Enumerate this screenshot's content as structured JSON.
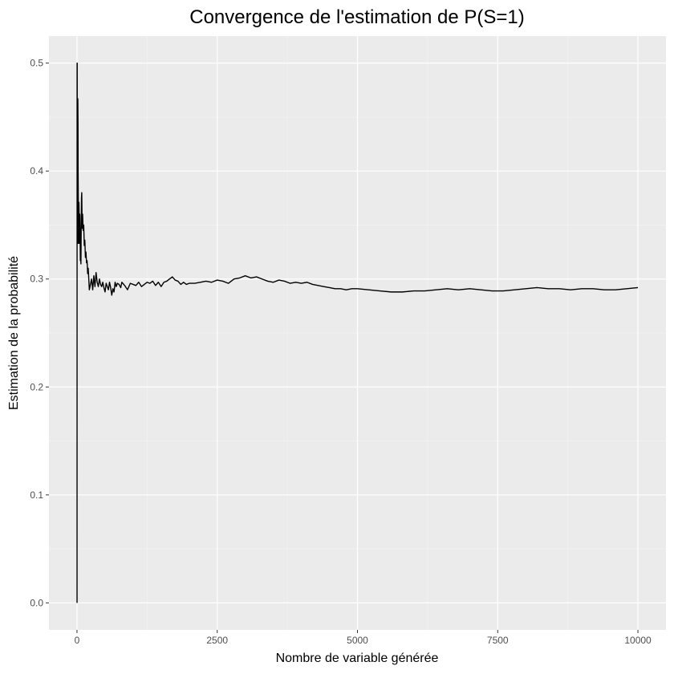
{
  "chart_data": {
    "type": "line",
    "title": "Convergence de l'estimation de P(S=1)",
    "xlabel": "Nombre de variable générée",
    "ylabel": "Estimation de la probabilité",
    "xlim": [
      -500,
      10500
    ],
    "ylim": [
      -0.025,
      0.525
    ],
    "x_ticks": [
      0,
      2500,
      5000,
      7500,
      10000
    ],
    "x_tick_labels": [
      "0",
      "2500",
      "5000",
      "7500",
      "10000"
    ],
    "y_ticks": [
      0.0,
      0.1,
      0.2,
      0.3,
      0.4,
      0.5
    ],
    "y_tick_labels": [
      "0.0",
      "0.1",
      "0.2",
      "0.3",
      "0.4",
      "0.5"
    ],
    "grid": true,
    "legend": "none",
    "colors": {
      "panel_background": "#ebebeb",
      "grid_major": "#ffffff",
      "grid_minor": "#f5f5f5",
      "line": "#000000",
      "tick_label": "#4d4d4d"
    },
    "series": [
      {
        "x": [
          1,
          2,
          3,
          4,
          6,
          8,
          10,
          12,
          15,
          18,
          20,
          25,
          30,
          35,
          40,
          45,
          50,
          55,
          60,
          65,
          70,
          75,
          80,
          85,
          90,
          95,
          100,
          110,
          120,
          130,
          140,
          150,
          160,
          170,
          180,
          190,
          200,
          210,
          220,
          240,
          260,
          280,
          300,
          320,
          340,
          360,
          380,
          400,
          420,
          440,
          460,
          480,
          500,
          520,
          540,
          560,
          580,
          600,
          620,
          640,
          660,
          680,
          700,
          720,
          750,
          780,
          800,
          850,
          900,
          950,
          1000,
          1050,
          1100,
          1150,
          1200,
          1250,
          1300,
          1350,
          1400,
          1450,
          1500,
          1550,
          1600,
          1650,
          1700,
          1750,
          1800,
          1850,
          1900,
          1950,
          2000,
          2100,
          2200,
          2300,
          2400,
          2500,
          2600,
          2700,
          2800,
          2900,
          3000,
          3100,
          3200,
          3300,
          3400,
          3500,
          3600,
          3700,
          3800,
          3900,
          4000,
          4100,
          4200,
          4300,
          4400,
          4500,
          4600,
          4700,
          4800,
          4900,
          5000,
          5200,
          5400,
          5600,
          5800,
          6000,
          6200,
          6400,
          6600,
          6800,
          7000,
          7200,
          7400,
          7600,
          7800,
          8000,
          8200,
          8400,
          8600,
          8800,
          9000,
          9200,
          9400,
          9600,
          9800,
          10000
        ],
        "y": [
          0.0,
          0.5,
          0.333,
          0.5,
          0.333,
          0.375,
          0.4,
          0.333,
          0.467,
          0.444,
          0.4,
          0.36,
          0.333,
          0.371,
          0.35,
          0.333,
          0.36,
          0.345,
          0.317,
          0.323,
          0.314,
          0.347,
          0.375,
          0.38,
          0.356,
          0.347,
          0.36,
          0.345,
          0.35,
          0.331,
          0.336,
          0.32,
          0.325,
          0.315,
          0.317,
          0.305,
          0.31,
          0.3,
          0.29,
          0.295,
          0.3,
          0.29,
          0.303,
          0.293,
          0.306,
          0.297,
          0.293,
          0.3,
          0.295,
          0.293,
          0.297,
          0.292,
          0.288,
          0.296,
          0.293,
          0.29,
          0.297,
          0.292,
          0.285,
          0.291,
          0.288,
          0.297,
          0.293,
          0.296,
          0.295,
          0.292,
          0.297,
          0.294,
          0.29,
          0.296,
          0.295,
          0.294,
          0.297,
          0.293,
          0.295,
          0.297,
          0.296,
          0.298,
          0.294,
          0.297,
          0.293,
          0.297,
          0.298,
          0.3,
          0.302,
          0.299,
          0.298,
          0.295,
          0.297,
          0.295,
          0.296,
          0.296,
          0.297,
          0.298,
          0.297,
          0.299,
          0.298,
          0.296,
          0.3,
          0.301,
          0.303,
          0.301,
          0.302,
          0.3,
          0.298,
          0.297,
          0.299,
          0.298,
          0.296,
          0.297,
          0.296,
          0.297,
          0.295,
          0.294,
          0.293,
          0.292,
          0.291,
          0.291,
          0.29,
          0.291,
          0.291,
          0.29,
          0.289,
          0.288,
          0.288,
          0.289,
          0.289,
          0.29,
          0.291,
          0.29,
          0.291,
          0.29,
          0.289,
          0.289,
          0.29,
          0.291,
          0.292,
          0.291,
          0.291,
          0.29,
          0.291,
          0.291,
          0.29,
          0.29,
          0.291,
          0.292
        ]
      }
    ]
  }
}
